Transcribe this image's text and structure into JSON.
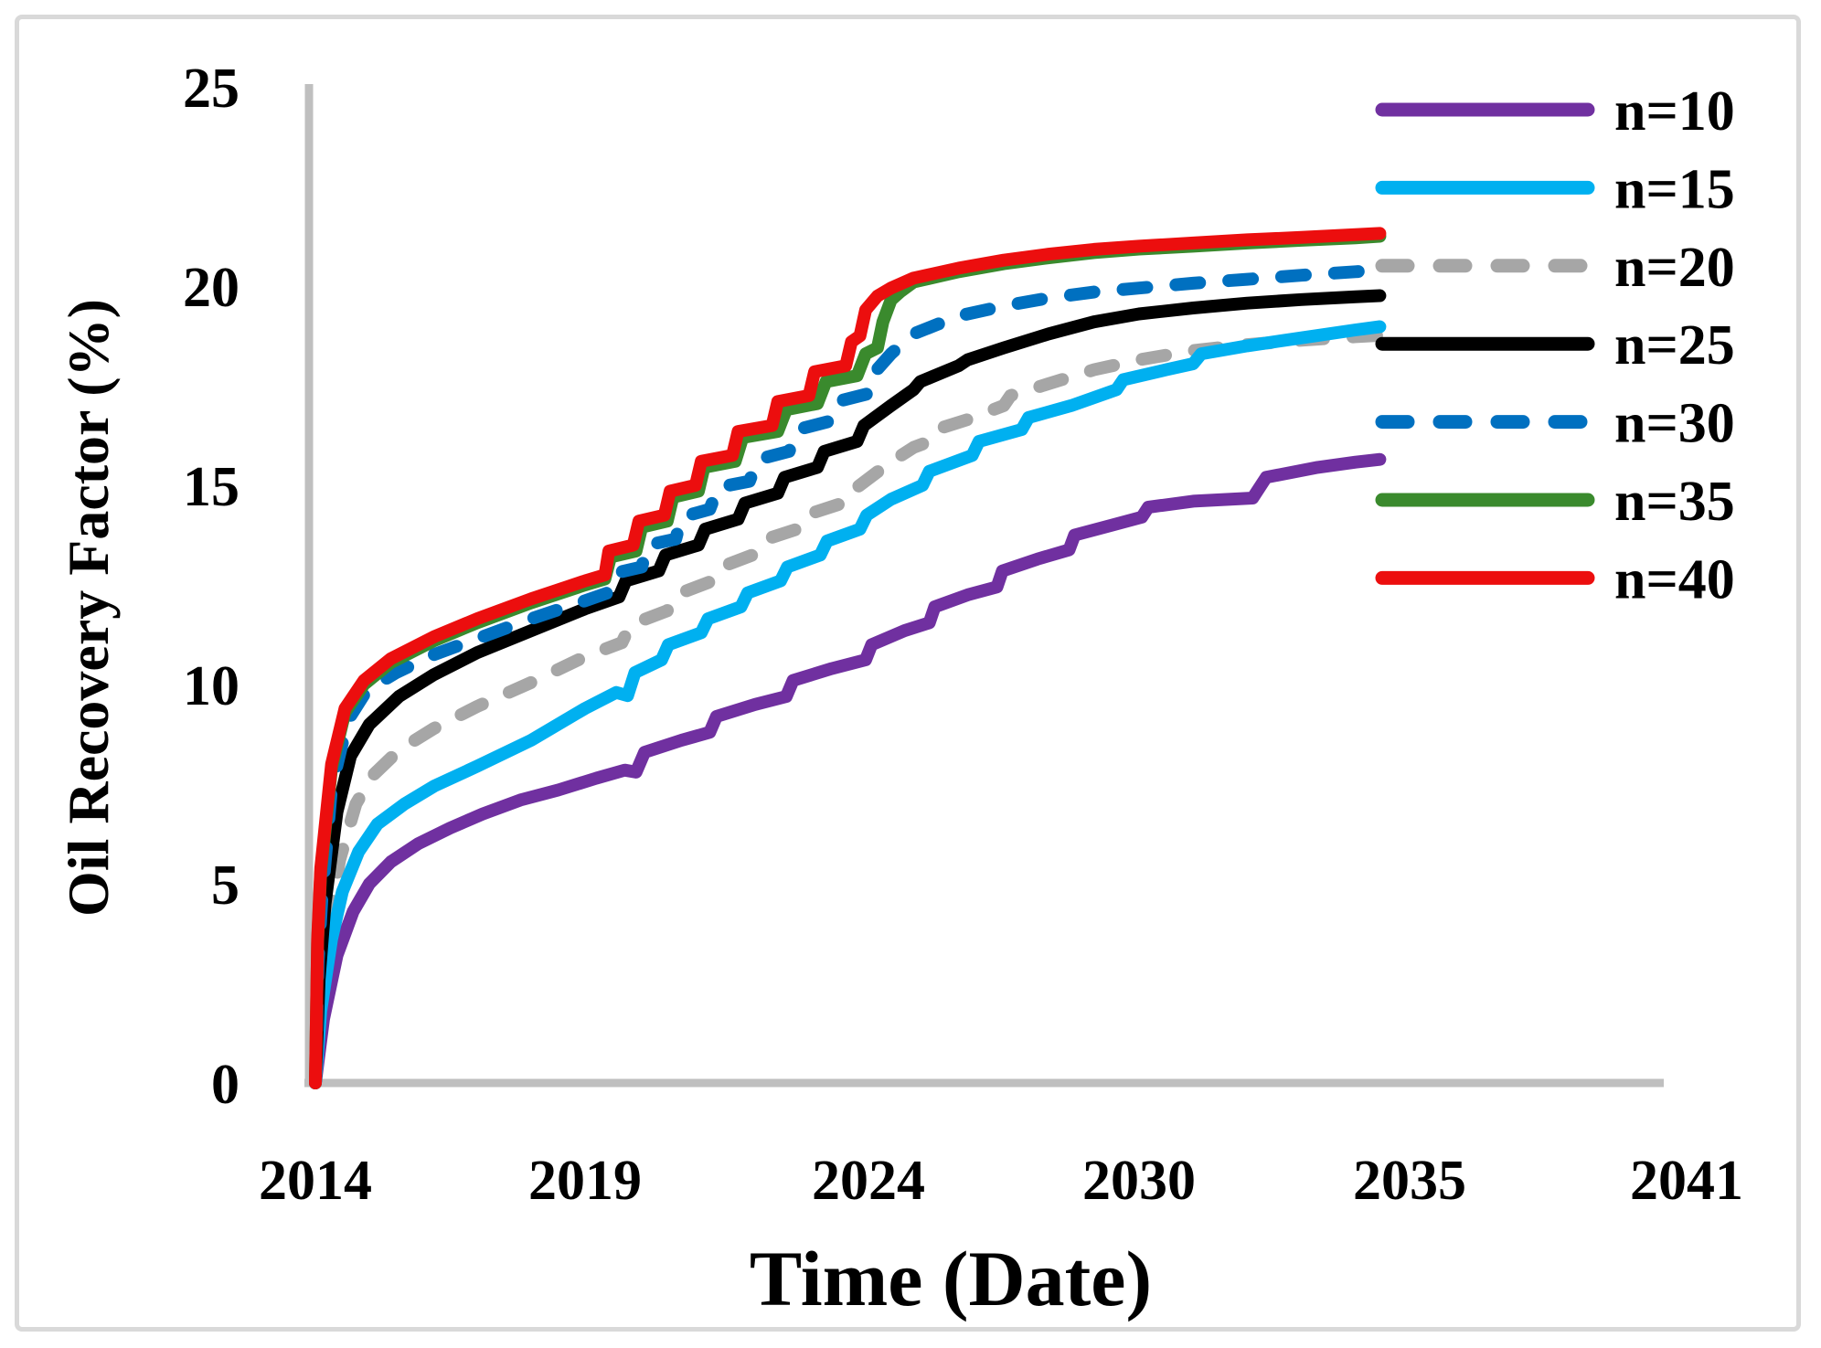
{
  "figure": {
    "background": "#ffffff",
    "border_color": "#d9d9d9",
    "axis_color": "#bfbfbf",
    "text_color": "#000000"
  },
  "chart_data": {
    "type": "line",
    "title": "",
    "xlabel": "Time (Date)",
    "ylabel": "Oil Recovery Factor (%)",
    "ylim": [
      0,
      25
    ],
    "y_ticks": [
      0,
      5,
      10,
      15,
      20,
      25
    ],
    "x_ticks": [
      {
        "label": "2014",
        "year": 2014
      },
      {
        "label": "2019",
        "year": 2019
      },
      {
        "label": "2024",
        "year": 2024
      },
      {
        "label": "2030",
        "year": 2030
      },
      {
        "label": "2035",
        "year": 2035
      },
      {
        "label": "2041",
        "year": 2041
      }
    ],
    "grid": false,
    "legend_position": "top-right",
    "series": [
      {
        "name": "n=10",
        "color": "#7030A0",
        "dash": false,
        "points": [
          [
            2014.0,
            0
          ],
          [
            2014.15,
            1.6
          ],
          [
            2014.4,
            3.2
          ],
          [
            2014.7,
            4.3
          ],
          [
            2015.0,
            5.0
          ],
          [
            2015.4,
            5.55
          ],
          [
            2015.9,
            6.0
          ],
          [
            2016.5,
            6.4
          ],
          [
            2017.1,
            6.75
          ],
          [
            2017.8,
            7.1
          ],
          [
            2018.5,
            7.35
          ],
          [
            2019.2,
            7.65
          ],
          [
            2019.7,
            7.85
          ],
          [
            2019.9,
            7.8
          ],
          [
            2020.05,
            8.3
          ],
          [
            2020.7,
            8.6
          ],
          [
            2021.2,
            8.8
          ],
          [
            2021.32,
            9.2
          ],
          [
            2022.0,
            9.5
          ],
          [
            2022.55,
            9.7
          ],
          [
            2022.67,
            10.1
          ],
          [
            2023.35,
            10.4
          ],
          [
            2023.95,
            10.62
          ],
          [
            2024.07,
            11.0
          ],
          [
            2024.8,
            11.35
          ],
          [
            2025.35,
            11.55
          ],
          [
            2025.47,
            11.95
          ],
          [
            2026.2,
            12.25
          ],
          [
            2026.85,
            12.45
          ],
          [
            2026.97,
            12.85
          ],
          [
            2027.75,
            13.15
          ],
          [
            2028.45,
            13.38
          ],
          [
            2028.57,
            13.75
          ],
          [
            2029.4,
            14.0
          ],
          [
            2030.05,
            14.2
          ],
          [
            2030.17,
            14.45
          ],
          [
            2031.0,
            14.6
          ],
          [
            2032.1,
            14.68
          ],
          [
            2032.35,
            15.2
          ],
          [
            2033.3,
            15.45
          ],
          [
            2034.0,
            15.58
          ],
          [
            2034.45,
            15.65
          ]
        ]
      },
      {
        "name": "n=15",
        "color": "#00B0F0",
        "dash": false,
        "points": [
          [
            2014.0,
            0
          ],
          [
            2014.1,
            1.8
          ],
          [
            2014.3,
            3.6
          ],
          [
            2014.5,
            4.8
          ],
          [
            2014.8,
            5.8
          ],
          [
            2015.15,
            6.5
          ],
          [
            2015.65,
            7.0
          ],
          [
            2016.2,
            7.45
          ],
          [
            2017.0,
            7.95
          ],
          [
            2018.0,
            8.6
          ],
          [
            2019.0,
            9.4
          ],
          [
            2019.55,
            9.8
          ],
          [
            2019.75,
            9.72
          ],
          [
            2019.88,
            10.3
          ],
          [
            2020.35,
            10.62
          ],
          [
            2020.47,
            11.0
          ],
          [
            2021.05,
            11.3
          ],
          [
            2021.17,
            11.65
          ],
          [
            2021.75,
            11.95
          ],
          [
            2021.87,
            12.3
          ],
          [
            2022.45,
            12.6
          ],
          [
            2022.57,
            12.95
          ],
          [
            2023.15,
            13.25
          ],
          [
            2023.27,
            13.6
          ],
          [
            2023.85,
            13.9
          ],
          [
            2023.97,
            14.25
          ],
          [
            2024.5,
            14.65
          ],
          [
            2025.2,
            15.0
          ],
          [
            2025.35,
            15.35
          ],
          [
            2026.3,
            15.75
          ],
          [
            2026.45,
            16.1
          ],
          [
            2027.4,
            16.4
          ],
          [
            2027.55,
            16.7
          ],
          [
            2028.5,
            17.0
          ],
          [
            2029.5,
            17.4
          ],
          [
            2029.65,
            17.65
          ],
          [
            2030.5,
            17.9
          ],
          [
            2031.0,
            18.05
          ],
          [
            2031.15,
            18.3
          ],
          [
            2032.0,
            18.5
          ],
          [
            2033.0,
            18.7
          ],
          [
            2034.0,
            18.9
          ],
          [
            2034.45,
            18.98
          ]
        ]
      },
      {
        "name": "n=20",
        "color": "#A6A6A6",
        "dash": true,
        "points": [
          [
            2014.0,
            0
          ],
          [
            2014.1,
            2.2
          ],
          [
            2014.25,
            4.0
          ],
          [
            2014.45,
            5.6
          ],
          [
            2014.75,
            7.0
          ],
          [
            2015.05,
            7.7
          ],
          [
            2015.55,
            8.35
          ],
          [
            2016.2,
            8.9
          ],
          [
            2017.0,
            9.45
          ],
          [
            2018.0,
            10.05
          ],
          [
            2019.0,
            10.7
          ],
          [
            2019.65,
            11.05
          ],
          [
            2019.8,
            11.5
          ],
          [
            2020.45,
            11.85
          ],
          [
            2020.6,
            12.25
          ],
          [
            2021.25,
            12.6
          ],
          [
            2021.4,
            12.95
          ],
          [
            2022.05,
            13.3
          ],
          [
            2022.2,
            13.65
          ],
          [
            2022.85,
            13.95
          ],
          [
            2023.0,
            14.3
          ],
          [
            2023.65,
            14.6
          ],
          [
            2023.8,
            14.95
          ],
          [
            2024.45,
            15.55
          ],
          [
            2025.0,
            15.95
          ],
          [
            2025.35,
            16.1
          ],
          [
            2025.5,
            16.4
          ],
          [
            2026.2,
            16.65
          ],
          [
            2027.0,
            17.0
          ],
          [
            2027.15,
            17.25
          ],
          [
            2028.0,
            17.55
          ],
          [
            2029.0,
            17.9
          ],
          [
            2030.0,
            18.15
          ],
          [
            2031.0,
            18.38
          ],
          [
            2032.0,
            18.53
          ],
          [
            2033.0,
            18.64
          ],
          [
            2034.0,
            18.73
          ],
          [
            2034.4,
            18.76
          ]
        ]
      },
      {
        "name": "n=25",
        "color": "#000000",
        "dash": false,
        "points": [
          [
            2014.0,
            0
          ],
          [
            2014.07,
            2.6
          ],
          [
            2014.18,
            4.5
          ],
          [
            2014.4,
            6.8
          ],
          [
            2014.65,
            8.2
          ],
          [
            2015.0,
            9.0
          ],
          [
            2015.55,
            9.7
          ],
          [
            2016.2,
            10.25
          ],
          [
            2017.0,
            10.8
          ],
          [
            2018.0,
            11.35
          ],
          [
            2019.0,
            11.9
          ],
          [
            2019.6,
            12.2
          ],
          [
            2019.72,
            12.6
          ],
          [
            2020.3,
            12.85
          ],
          [
            2020.42,
            13.25
          ],
          [
            2021.0,
            13.5
          ],
          [
            2021.12,
            13.9
          ],
          [
            2021.7,
            14.15
          ],
          [
            2021.82,
            14.55
          ],
          [
            2022.4,
            14.8
          ],
          [
            2022.52,
            15.2
          ],
          [
            2023.1,
            15.45
          ],
          [
            2023.22,
            15.85
          ],
          [
            2023.8,
            16.1
          ],
          [
            2023.92,
            16.5
          ],
          [
            2024.5,
            17.0
          ],
          [
            2025.0,
            17.4
          ],
          [
            2025.15,
            17.6
          ],
          [
            2026.0,
            18.0
          ],
          [
            2026.2,
            18.15
          ],
          [
            2027.0,
            18.45
          ],
          [
            2028.0,
            18.8
          ],
          [
            2029.0,
            19.1
          ],
          [
            2030.0,
            19.3
          ],
          [
            2031.0,
            19.45
          ],
          [
            2032.0,
            19.57
          ],
          [
            2033.0,
            19.66
          ],
          [
            2034.0,
            19.73
          ],
          [
            2034.45,
            19.76
          ]
        ]
      },
      {
        "name": "n=30",
        "color": "#0070C0",
        "dash": true,
        "points": [
          [
            2014.0,
            0
          ],
          [
            2014.05,
            3.0
          ],
          [
            2014.12,
            4.6
          ],
          [
            2014.3,
            7.4
          ],
          [
            2014.6,
            9.1
          ],
          [
            2014.95,
            9.85
          ],
          [
            2015.5,
            10.3
          ],
          [
            2016.2,
            10.75
          ],
          [
            2017.0,
            11.15
          ],
          [
            2018.0,
            11.65
          ],
          [
            2019.0,
            12.1
          ],
          [
            2019.4,
            12.3
          ],
          [
            2019.55,
            12.8
          ],
          [
            2020.0,
            12.95
          ],
          [
            2020.1,
            13.5
          ],
          [
            2020.6,
            13.65
          ],
          [
            2020.7,
            14.2
          ],
          [
            2021.2,
            14.4
          ],
          [
            2021.35,
            14.95
          ],
          [
            2021.9,
            15.1
          ],
          [
            2022.05,
            15.65
          ],
          [
            2022.6,
            15.85
          ],
          [
            2022.75,
            16.4
          ],
          [
            2023.3,
            16.6
          ],
          [
            2023.45,
            17.1
          ],
          [
            2024.0,
            17.3
          ],
          [
            2024.15,
            17.85
          ],
          [
            2024.5,
            18.3
          ],
          [
            2025.0,
            18.8
          ],
          [
            2026.0,
            19.25
          ],
          [
            2027.0,
            19.5
          ],
          [
            2028.0,
            19.7
          ],
          [
            2029.0,
            19.85
          ],
          [
            2030.0,
            19.95
          ],
          [
            2031.0,
            20.07
          ],
          [
            2032.0,
            20.17
          ],
          [
            2033.0,
            20.27
          ],
          [
            2034.0,
            20.36
          ],
          [
            2034.4,
            20.4
          ]
        ]
      },
      {
        "name": "n=35",
        "color": "#3A8A2D",
        "dash": false,
        "points": [
          [
            2014.0,
            0
          ],
          [
            2014.04,
            3.5
          ],
          [
            2014.1,
            5.3
          ],
          [
            2014.3,
            7.9
          ],
          [
            2014.55,
            9.3
          ],
          [
            2014.9,
            10.0
          ],
          [
            2015.4,
            10.55
          ],
          [
            2016.2,
            11.1
          ],
          [
            2017.0,
            11.55
          ],
          [
            2018.0,
            12.05
          ],
          [
            2019.0,
            12.5
          ],
          [
            2019.35,
            12.65
          ],
          [
            2019.45,
            13.2
          ],
          [
            2019.9,
            13.35
          ],
          [
            2020.0,
            13.95
          ],
          [
            2020.45,
            14.1
          ],
          [
            2020.55,
            14.7
          ],
          [
            2021.0,
            14.85
          ],
          [
            2021.1,
            15.45
          ],
          [
            2021.65,
            15.6
          ],
          [
            2021.78,
            16.2
          ],
          [
            2022.4,
            16.35
          ],
          [
            2022.55,
            16.9
          ],
          [
            2023.1,
            17.05
          ],
          [
            2023.25,
            17.6
          ],
          [
            2023.8,
            17.75
          ],
          [
            2023.95,
            18.3
          ],
          [
            2024.2,
            18.45
          ],
          [
            2024.32,
            19.1
          ],
          [
            2024.5,
            19.65
          ],
          [
            2024.7,
            19.85
          ],
          [
            2025.0,
            20.1
          ],
          [
            2026.0,
            20.36
          ],
          [
            2027.0,
            20.56
          ],
          [
            2028.0,
            20.71
          ],
          [
            2029.0,
            20.84
          ],
          [
            2030.0,
            20.93
          ],
          [
            2031.0,
            21.0
          ],
          [
            2032.0,
            21.08
          ],
          [
            2033.0,
            21.15
          ],
          [
            2034.0,
            21.21
          ],
          [
            2034.45,
            21.25
          ]
        ]
      },
      {
        "name": "n=40",
        "color": "#EC0E0E",
        "dash": false,
        "points": [
          [
            2014.0,
            0
          ],
          [
            2014.04,
            3.6
          ],
          [
            2014.1,
            5.4
          ],
          [
            2014.3,
            8.0
          ],
          [
            2014.55,
            9.4
          ],
          [
            2014.9,
            10.1
          ],
          [
            2015.4,
            10.65
          ],
          [
            2016.2,
            11.2
          ],
          [
            2017.0,
            11.65
          ],
          [
            2018.0,
            12.15
          ],
          [
            2019.0,
            12.6
          ],
          [
            2019.35,
            12.75
          ],
          [
            2019.42,
            13.35
          ],
          [
            2019.85,
            13.5
          ],
          [
            2019.95,
            14.1
          ],
          [
            2020.4,
            14.25
          ],
          [
            2020.5,
            14.85
          ],
          [
            2020.95,
            15.0
          ],
          [
            2021.05,
            15.6
          ],
          [
            2021.6,
            15.75
          ],
          [
            2021.7,
            16.35
          ],
          [
            2022.3,
            16.5
          ],
          [
            2022.4,
            17.1
          ],
          [
            2022.95,
            17.25
          ],
          [
            2023.05,
            17.85
          ],
          [
            2023.6,
            18.0
          ],
          [
            2023.7,
            18.6
          ],
          [
            2023.85,
            18.75
          ],
          [
            2023.95,
            19.4
          ],
          [
            2024.2,
            19.75
          ],
          [
            2024.5,
            19.95
          ],
          [
            2025.0,
            20.2
          ],
          [
            2026.0,
            20.45
          ],
          [
            2027.0,
            20.65
          ],
          [
            2028.0,
            20.8
          ],
          [
            2029.0,
            20.92
          ],
          [
            2030.0,
            21.0
          ],
          [
            2031.0,
            21.08
          ],
          [
            2032.0,
            21.16
          ],
          [
            2033.0,
            21.22
          ],
          [
            2034.0,
            21.29
          ],
          [
            2034.45,
            21.32
          ]
        ]
      }
    ]
  }
}
